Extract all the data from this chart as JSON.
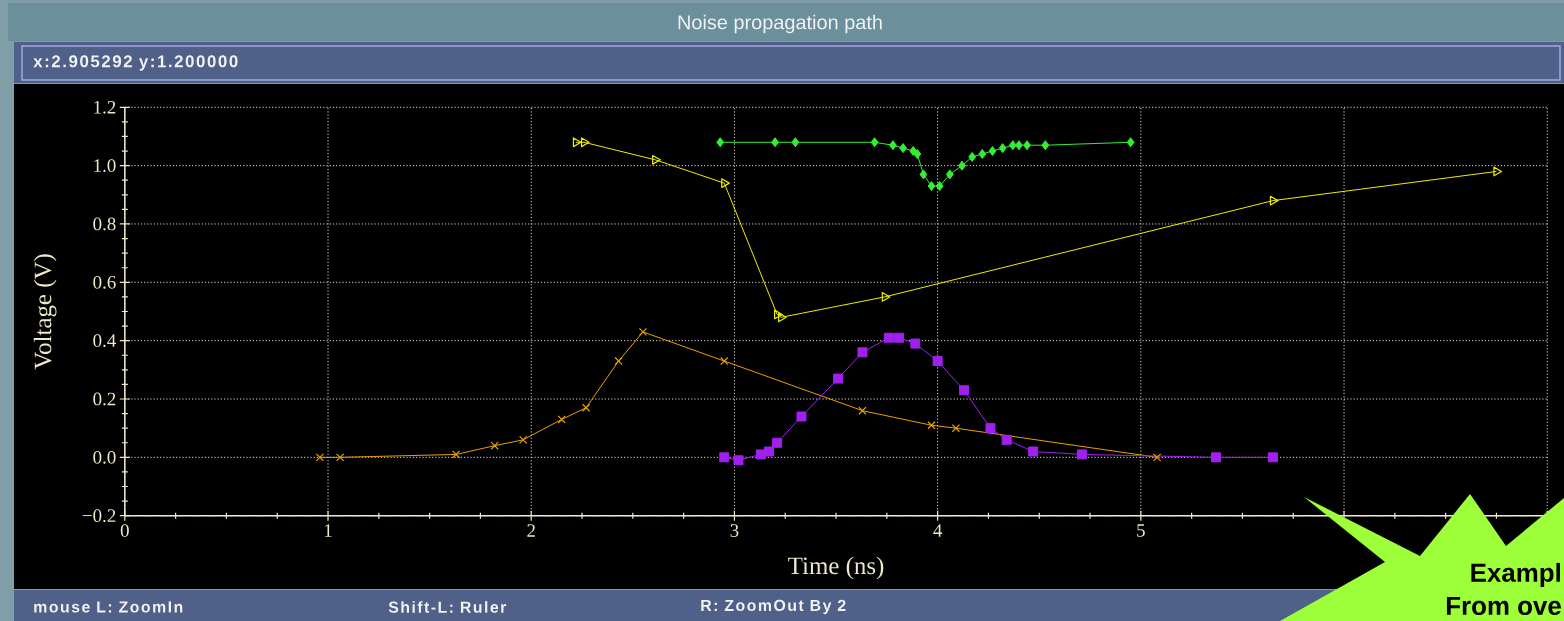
{
  "chart_data": {
    "type": "line",
    "title": "Noise propagation path",
    "xlabel": "Time (ns)",
    "ylabel": "Voltage (V)",
    "xlim": [
      0,
      7
    ],
    "ylim": [
      -0.2,
      1.2
    ],
    "xticks": [
      0,
      1,
      2,
      3,
      4,
      5,
      {
        "value": 6,
        "label": null
      },
      {
        "value": 7,
        "label": null
      }
    ],
    "yticks": [
      {
        "value": -0.2,
        "label": "−0.2"
      },
      {
        "value": 0,
        "label": "0.0"
      },
      0.2,
      0.4,
      0.6,
      0.8,
      {
        "value": 1,
        "label": "1.0"
      },
      1.2
    ],
    "grid": true,
    "line_style": "solid",
    "series": [
      {
        "color": "#e8a000",
        "marker": "cross",
        "x": [
          0.96,
          1.06,
          1.63,
          1.82,
          1.96,
          2.15,
          2.27,
          2.43,
          2.55,
          2.95,
          3.63,
          3.97,
          4.09,
          5.08
        ],
        "values": [
          0,
          0,
          0.01,
          0.04,
          0.06,
          0.13,
          0.17,
          0.33,
          0.43,
          0.33,
          0.16,
          0.11,
          0.1,
          0
        ]
      },
      {
        "color": "#eeee00",
        "marker": "triangle",
        "x": [
          2.22,
          2.26,
          2.61,
          2.95,
          3.21,
          3.23,
          3.74,
          5.65,
          6.75
        ],
        "values": [
          1.08,
          1.08,
          1.02,
          0.94,
          0.49,
          0.48,
          0.55,
          0.88,
          0.98
        ]
      },
      {
        "color": "#33ee33",
        "marker": "diamond",
        "x": [
          2.93,
          3.2,
          3.3,
          3.69,
          3.78,
          3.83,
          3.88,
          3.9,
          3.93,
          3.97,
          4.01,
          4.06,
          4.12,
          4.17,
          4.22,
          4.27,
          4.32,
          4.37,
          4.4,
          4.44,
          4.53,
          4.95
        ],
        "values": [
          1.08,
          1.08,
          1.08,
          1.08,
          1.07,
          1.06,
          1.05,
          1.04,
          0.97,
          0.93,
          0.93,
          0.97,
          1.0,
          1.03,
          1.04,
          1.05,
          1.06,
          1.07,
          1.07,
          1.07,
          1.07,
          1.08
        ]
      },
      {
        "color": "#a020f0",
        "marker": "square",
        "x": [
          2.95,
          3.02,
          3.13,
          3.17,
          3.21,
          3.33,
          3.51,
          3.63,
          3.76,
          3.81,
          3.89,
          4.0,
          4.13,
          4.26,
          4.34,
          4.47,
          4.71,
          5.37,
          5.65
        ],
        "values": [
          0,
          -0.01,
          0.01,
          0.02,
          0.05,
          0.14,
          0.27,
          0.36,
          0.41,
          0.41,
          0.39,
          0.33,
          0.23,
          0.1,
          0.06,
          0.02,
          0.01,
          0,
          0
        ]
      }
    ],
    "annotations": [
      "x:2.905292 y:1.200000",
      "mouse L: ZoomIn",
      "Shift-L: Ruler",
      "R: ZoomOut By 2",
      "Exampl",
      "From ove"
    ]
  }
}
